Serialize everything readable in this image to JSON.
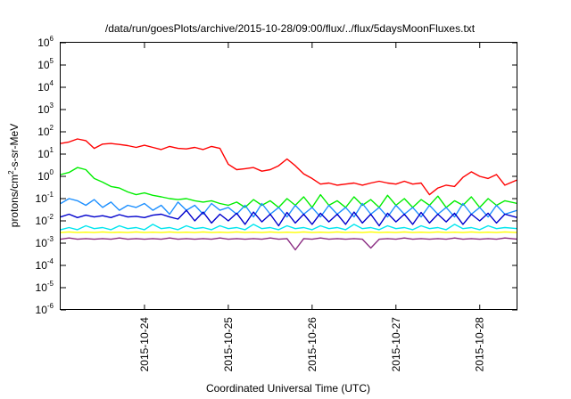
{
  "chart_data": {
    "type": "line",
    "title": "/data/run/goesPlots/archive/2015-10-28/09:00/flux/../flux/5daysMoonFluxes.txt",
    "xlabel": "Coordinated Universal Time (UTC)",
    "ylabel": {
      "pre": "protons/cm",
      "sup": "2",
      "post": "-s-sr-MeV"
    },
    "yscale": "log",
    "ylim": [
      1e-06,
      1000000.0
    ],
    "xlim": [
      0,
      5.45
    ],
    "y_ticks": [
      {
        "base": "10",
        "exp": "6",
        "value": 1000000.0
      },
      {
        "base": "10",
        "exp": "5",
        "value": 100000.0
      },
      {
        "base": "10",
        "exp": "4",
        "value": 10000.0
      },
      {
        "base": "10",
        "exp": "3",
        "value": 1000.0
      },
      {
        "base": "10",
        "exp": "2",
        "value": 100.0
      },
      {
        "base": "10",
        "exp": "1",
        "value": 10.0
      },
      {
        "base": "10",
        "exp": "0",
        "value": 1.0
      },
      {
        "base": "10",
        "exp": "-1",
        "value": 0.1
      },
      {
        "base": "10",
        "exp": "-2",
        "value": 0.01
      },
      {
        "base": "10",
        "exp": "-3",
        "value": 0.001
      },
      {
        "base": "10",
        "exp": "-4",
        "value": 0.0001
      },
      {
        "base": "10",
        "exp": "-5",
        "value": 1e-05
      },
      {
        "base": "10",
        "exp": "-6",
        "value": 1e-06
      }
    ],
    "x_ticks": [
      {
        "label": "2015-10-24",
        "value": 1
      },
      {
        "label": "2015-10-25",
        "value": 2
      },
      {
        "label": "2015-10-26",
        "value": 3
      },
      {
        "label": "2015-10-27",
        "value": 4
      },
      {
        "label": "2015-10-28",
        "value": 5
      }
    ],
    "grid": false,
    "series": [
      {
        "color": "#ff0000",
        "x": [
          0,
          0.1,
          0.2,
          0.3,
          0.4,
          0.5,
          0.6,
          0.7,
          0.8,
          0.9,
          1.0,
          1.1,
          1.2,
          1.3,
          1.4,
          1.5,
          1.6,
          1.7,
          1.8,
          1.9,
          2.0,
          2.1,
          2.2,
          2.3,
          2.4,
          2.5,
          2.6,
          2.7,
          2.8,
          2.9,
          3.0,
          3.1,
          3.2,
          3.3,
          3.4,
          3.5,
          3.6,
          3.7,
          3.8,
          3.9,
          4.0,
          4.1,
          4.2,
          4.3,
          4.4,
          4.5,
          4.6,
          4.7,
          4.8,
          4.9,
          5.0,
          5.1,
          5.2,
          5.3,
          5.45
        ],
        "y": [
          30,
          35,
          48,
          40,
          18,
          28,
          30,
          27,
          24,
          20,
          25,
          20,
          16,
          22,
          18,
          17,
          20,
          16,
          22,
          18,
          3.5,
          2.0,
          2.2,
          2.5,
          1.7,
          2.0,
          3.0,
          6.0,
          3.0,
          1.3,
          0.8,
          0.45,
          0.5,
          0.4,
          0.45,
          0.5,
          0.4,
          0.5,
          0.6,
          0.5,
          0.45,
          0.6,
          0.45,
          0.5,
          0.15,
          0.3,
          0.4,
          0.35,
          0.9,
          1.6,
          1.0,
          0.8,
          1.2,
          0.4,
          0.7
        ]
      },
      {
        "color": "#00ee00",
        "x": [
          0,
          0.1,
          0.2,
          0.3,
          0.4,
          0.5,
          0.6,
          0.7,
          0.8,
          0.9,
          1.0,
          1.1,
          1.2,
          1.3,
          1.4,
          1.5,
          1.6,
          1.7,
          1.8,
          1.9,
          2.0,
          2.1,
          2.2,
          2.3,
          2.4,
          2.5,
          2.6,
          2.7,
          2.8,
          2.9,
          3.0,
          3.1,
          3.2,
          3.3,
          3.4,
          3.5,
          3.6,
          3.7,
          3.8,
          3.9,
          4.0,
          4.1,
          4.2,
          4.3,
          4.4,
          4.5,
          4.6,
          4.7,
          4.8,
          4.9,
          5.0,
          5.1,
          5.2,
          5.3,
          5.45
        ],
        "y": [
          1.2,
          1.5,
          2.5,
          2.0,
          0.8,
          0.55,
          0.35,
          0.3,
          0.2,
          0.15,
          0.18,
          0.14,
          0.12,
          0.1,
          0.09,
          0.1,
          0.08,
          0.07,
          0.08,
          0.06,
          0.05,
          0.07,
          0.04,
          0.09,
          0.05,
          0.08,
          0.04,
          0.1,
          0.05,
          0.12,
          0.04,
          0.15,
          0.05,
          0.08,
          0.04,
          0.12,
          0.05,
          0.09,
          0.04,
          0.14,
          0.05,
          0.1,
          0.04,
          0.09,
          0.05,
          0.13,
          0.04,
          0.08,
          0.05,
          0.12,
          0.04,
          0.1,
          0.05,
          0.08,
          0.06
        ]
      },
      {
        "color": "#1e90ff",
        "x": [
          0,
          0.1,
          0.2,
          0.3,
          0.4,
          0.5,
          0.6,
          0.7,
          0.8,
          0.9,
          1.0,
          1.1,
          1.2,
          1.3,
          1.4,
          1.5,
          1.6,
          1.7,
          1.8,
          1.9,
          2.0,
          2.1,
          2.2,
          2.3,
          2.4,
          2.5,
          2.6,
          2.7,
          2.8,
          2.9,
          3.0,
          3.1,
          3.2,
          3.3,
          3.4,
          3.5,
          3.6,
          3.7,
          3.8,
          3.9,
          4.0,
          4.1,
          4.2,
          4.3,
          4.4,
          4.5,
          4.6,
          4.7,
          4.8,
          4.9,
          5.0,
          5.1,
          5.2,
          5.3,
          5.45
        ],
        "y": [
          0.06,
          0.1,
          0.08,
          0.05,
          0.09,
          0.04,
          0.07,
          0.03,
          0.05,
          0.04,
          0.06,
          0.03,
          0.05,
          0.02,
          0.07,
          0.03,
          0.05,
          0.02,
          0.06,
          0.03,
          0.04,
          0.02,
          0.05,
          0.015,
          0.06,
          0.02,
          0.04,
          0.015,
          0.05,
          0.02,
          0.04,
          0.015,
          0.05,
          0.02,
          0.04,
          0.015,
          0.06,
          0.02,
          0.04,
          0.015,
          0.05,
          0.02,
          0.04,
          0.015,
          0.05,
          0.02,
          0.04,
          0.015,
          0.06,
          0.02,
          0.04,
          0.015,
          0.05,
          0.02,
          0.03
        ]
      },
      {
        "color": "#00e5ee",
        "x": [
          0,
          0.1,
          0.2,
          0.3,
          0.4,
          0.5,
          0.6,
          0.7,
          0.8,
          0.9,
          1.0,
          1.1,
          1.2,
          1.3,
          1.4,
          1.5,
          1.6,
          1.7,
          1.8,
          1.9,
          2.0,
          2.1,
          2.2,
          2.3,
          2.4,
          2.5,
          2.6,
          2.7,
          2.8,
          2.9,
          3.0,
          3.1,
          3.2,
          3.3,
          3.4,
          3.5,
          3.6,
          3.7,
          3.8,
          3.9,
          4.0,
          4.1,
          4.2,
          4.3,
          4.4,
          4.5,
          4.6,
          4.7,
          4.8,
          4.9,
          5.0,
          5.1,
          5.2,
          5.3,
          5.45
        ],
        "y": [
          0.004,
          0.005,
          0.004,
          0.006,
          0.0045,
          0.005,
          0.004,
          0.006,
          0.0045,
          0.005,
          0.004,
          0.007,
          0.0045,
          0.005,
          0.004,
          0.006,
          0.0045,
          0.005,
          0.004,
          0.006,
          0.0045,
          0.005,
          0.004,
          0.007,
          0.0045,
          0.005,
          0.004,
          0.006,
          0.0045,
          0.005,
          0.004,
          0.006,
          0.0045,
          0.005,
          0.004,
          0.007,
          0.0045,
          0.005,
          0.004,
          0.006,
          0.0045,
          0.005,
          0.004,
          0.006,
          0.0045,
          0.005,
          0.004,
          0.007,
          0.0045,
          0.005,
          0.004,
          0.006,
          0.0045,
          0.005,
          0.0045
        ]
      },
      {
        "color": "#0000cd",
        "x": [
          0,
          0.1,
          0.2,
          0.3,
          0.4,
          0.5,
          0.6,
          0.7,
          0.8,
          0.9,
          1.0,
          1.1,
          1.2,
          1.3,
          1.4,
          1.5,
          1.6,
          1.7,
          1.8,
          1.9,
          2.0,
          2.1,
          2.2,
          2.3,
          2.4,
          2.5,
          2.6,
          2.7,
          2.8,
          2.9,
          3.0,
          3.1,
          3.2,
          3.3,
          3.4,
          3.5,
          3.6,
          3.7,
          3.8,
          3.9,
          4.0,
          4.1,
          4.2,
          4.3,
          4.4,
          4.5,
          4.6,
          4.7,
          4.8,
          4.9,
          5.0,
          5.1,
          5.2,
          5.3,
          5.45
        ],
        "y": [
          0.015,
          0.02,
          0.014,
          0.018,
          0.015,
          0.017,
          0.014,
          0.019,
          0.015,
          0.016,
          0.014,
          0.018,
          0.02,
          0.015,
          0.012,
          0.03,
          0.01,
          0.025,
          0.008,
          0.02,
          0.01,
          0.022,
          0.007,
          0.025,
          0.009,
          0.02,
          0.006,
          0.024,
          0.008,
          0.02,
          0.007,
          0.022,
          0.009,
          0.02,
          0.007,
          0.025,
          0.008,
          0.02,
          0.006,
          0.022,
          0.009,
          0.02,
          0.007,
          0.024,
          0.008,
          0.02,
          0.009,
          0.022,
          0.007,
          0.02,
          0.01,
          0.022,
          0.008,
          0.02,
          0.014
        ]
      },
      {
        "color": "#ffff00",
        "x": [
          0,
          0.1,
          0.2,
          0.3,
          0.4,
          0.5,
          0.6,
          0.7,
          0.8,
          0.9,
          1.0,
          1.1,
          1.2,
          1.3,
          1.4,
          1.5,
          1.6,
          1.7,
          1.8,
          1.9,
          2.0,
          2.1,
          2.2,
          2.3,
          2.4,
          2.5,
          2.6,
          2.7,
          2.8,
          2.9,
          3.0,
          3.1,
          3.2,
          3.3,
          3.4,
          3.5,
          3.6,
          3.7,
          3.8,
          3.9,
          4.0,
          4.1,
          4.2,
          4.3,
          4.4,
          4.5,
          4.6,
          4.7,
          4.8,
          4.9,
          5.0,
          5.1,
          5.2,
          5.3,
          5.45
        ],
        "y": [
          0.003,
          0.0032,
          0.003,
          0.0031,
          0.003,
          0.0032,
          0.003,
          0.0031,
          0.003,
          0.0032,
          0.003,
          0.0031,
          0.003,
          0.0032,
          0.003,
          0.0031,
          0.003,
          0.0032,
          0.003,
          0.0031,
          0.003,
          0.0032,
          0.003,
          0.0031,
          0.003,
          0.0032,
          0.003,
          0.0031,
          0.003,
          0.0032,
          0.003,
          0.0031,
          0.003,
          0.0032,
          0.003,
          0.0031,
          0.003,
          0.0032,
          0.003,
          0.0031,
          0.003,
          0.0032,
          0.003,
          0.0031,
          0.003,
          0.0032,
          0.003,
          0.0031,
          0.003,
          0.0032,
          0.003,
          0.0031,
          0.003,
          0.0032,
          0.003
        ]
      },
      {
        "color": "#8b2e83",
        "x": [
          0,
          0.1,
          0.2,
          0.3,
          0.4,
          0.5,
          0.6,
          0.7,
          0.8,
          0.9,
          1.0,
          1.1,
          1.2,
          1.3,
          1.4,
          1.5,
          1.6,
          1.7,
          1.8,
          1.9,
          2.0,
          2.1,
          2.2,
          2.3,
          2.4,
          2.5,
          2.6,
          2.7,
          2.8,
          2.9,
          3.0,
          3.1,
          3.2,
          3.3,
          3.4,
          3.5,
          3.6,
          3.7,
          3.8,
          3.9,
          4.0,
          4.1,
          4.2,
          4.3,
          4.4,
          4.5,
          4.6,
          4.7,
          4.8,
          4.9,
          5.0,
          5.1,
          5.2,
          5.3,
          5.45
        ],
        "y": [
          0.0015,
          0.0017,
          0.0015,
          0.0016,
          0.0015,
          0.0016,
          0.0015,
          0.0017,
          0.0015,
          0.0016,
          0.0015,
          0.0016,
          0.0015,
          0.0017,
          0.0015,
          0.0016,
          0.0015,
          0.0016,
          0.0015,
          0.0017,
          0.0015,
          0.0016,
          0.0015,
          0.0016,
          0.0015,
          0.0017,
          0.0015,
          0.0016,
          0.0005,
          0.0016,
          0.0015,
          0.0017,
          0.0015,
          0.0016,
          0.0015,
          0.0016,
          0.0015,
          0.0006,
          0.0015,
          0.0016,
          0.0015,
          0.0017,
          0.0015,
          0.0016,
          0.0015,
          0.0016,
          0.0015,
          0.0017,
          0.0015,
          0.0016,
          0.0015,
          0.0016,
          0.0015,
          0.0017,
          0.0015
        ]
      }
    ]
  }
}
